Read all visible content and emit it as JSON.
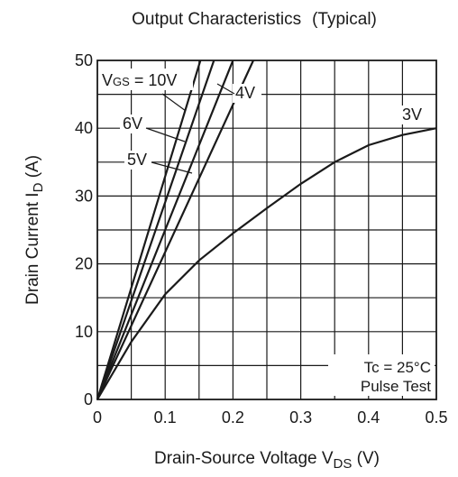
{
  "chart_data": {
    "type": "line",
    "title": "Output Characteristics",
    "title_suffix": "(Typical)",
    "xlabel_main": "Drain-Source Voltage  V",
    "xlabel_sub": "DS",
    "xlabel_unit": " (V)",
    "ylabel_main": "Drain Current  I",
    "ylabel_sub": "D",
    "ylabel_unit": " (A)",
    "xlim": [
      0,
      0.5
    ],
    "ylim": [
      0,
      50
    ],
    "grid": true,
    "x_minor_step": 0.05,
    "y_minor_step": 5,
    "x_ticks": [
      0,
      0.1,
      0.2,
      0.3,
      0.4,
      0.5
    ],
    "x_tick_labels": [
      "0",
      "0.1",
      "0.2",
      "0.3",
      "0.4",
      "0.5"
    ],
    "y_ticks": [
      0,
      10,
      20,
      30,
      40,
      50
    ],
    "y_tick_labels": [
      "0",
      "10",
      "20",
      "30",
      "40",
      "50"
    ],
    "series": [
      {
        "name": "10V",
        "points": [
          [
            0,
            0
          ],
          [
            0.152,
            50
          ]
        ]
      },
      {
        "name": "6V",
        "points": [
          [
            0,
            0
          ],
          [
            0.172,
            50
          ]
        ]
      },
      {
        "name": "5V",
        "points": [
          [
            0,
            0
          ],
          [
            0.2,
            50
          ]
        ]
      },
      {
        "name": "4V",
        "points": [
          [
            0,
            0
          ],
          [
            0.23,
            50
          ]
        ]
      },
      {
        "name": "3V",
        "points": [
          [
            0,
            0
          ],
          [
            0.05,
            8.5
          ],
          [
            0.1,
            15.5
          ],
          [
            0.15,
            20.5
          ],
          [
            0.2,
            24.5
          ],
          [
            0.25,
            28.2
          ],
          [
            0.3,
            31.8
          ],
          [
            0.35,
            35
          ],
          [
            0.4,
            37.5
          ],
          [
            0.45,
            39
          ],
          [
            0.5,
            40
          ]
        ]
      }
    ],
    "annotations": {
      "vgs_prefix": "V",
      "vgs_sub": "GS",
      "vgs_value": " = 10V",
      "label_6v": "6V",
      "label_5v": "5V",
      "label_4v": "4V",
      "label_3v": "3V",
      "conditions": [
        "Tc = 25°C",
        "Pulse Test"
      ]
    }
  }
}
